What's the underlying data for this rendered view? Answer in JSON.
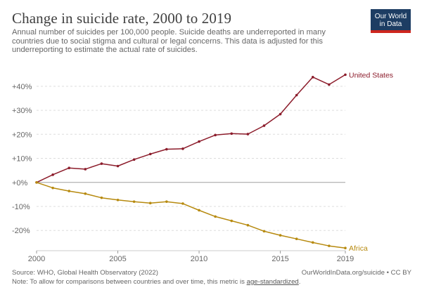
{
  "header": {
    "title": "Change in suicide rate, 2000 to 2019",
    "subtitle": "Annual number of suicides per 100,000 people. Suicide deaths are underreported in many countries due to social stigma and cultural or legal concerns. This data is adjusted for this underreporting to estimate the actual rate of suicides.",
    "logo_line1": "Our World",
    "logo_line2": "in Data"
  },
  "footer": {
    "source": "Source: WHO, Global Health Observatory (2022)",
    "note_prefix": "Note: To allow for comparisons between countries and over time, this metric is ",
    "note_link": "age-standardized",
    "note_suffix": ".",
    "url": "OurWorldInData.org/suicide",
    "license": " • CC BY"
  },
  "colors": {
    "united_states": "#8c1c2b",
    "africa": "#b78a0f",
    "grid": "#dddddd",
    "zero_line": "#a0a0a0",
    "logo_bg": "#1d3d63",
    "logo_bar": "#ce261e"
  },
  "chart_data": {
    "type": "line",
    "x": [
      2000,
      2001,
      2002,
      2003,
      2004,
      2005,
      2006,
      2007,
      2008,
      2009,
      2010,
      2011,
      2012,
      2013,
      2014,
      2015,
      2016,
      2017,
      2018,
      2019
    ],
    "series": [
      {
        "name": "United States",
        "color": "#8c1c2b",
        "values": [
          0,
          3.2,
          6.0,
          5.5,
          7.8,
          6.8,
          9.5,
          11.8,
          13.8,
          14.0,
          17.0,
          19.7,
          20.3,
          20.1,
          23.6,
          28.4,
          36.3,
          43.8,
          40.7,
          44.8
        ]
      },
      {
        "name": "Africa",
        "color": "#b78a0f",
        "values": [
          0,
          -2.3,
          -3.6,
          -4.7,
          -6.4,
          -7.3,
          -8.0,
          -8.6,
          -8.0,
          -8.8,
          -11.6,
          -14.2,
          -16.0,
          -17.8,
          -20.3,
          -22.0,
          -23.5,
          -25.0,
          -26.4,
          -27.3
        ]
      }
    ],
    "x_ticks": [
      2000,
      2005,
      2010,
      2015,
      2019
    ],
    "x_tick_labels": [
      "2000",
      "2005",
      "2010",
      "2015",
      "2019"
    ],
    "y_ticks": [
      -20,
      -10,
      0,
      10,
      20,
      30,
      40
    ],
    "y_tick_labels": [
      "-20%",
      "-10%",
      "+0%",
      "+10%",
      "+20%",
      "+30%",
      "+40%"
    ],
    "xlim": [
      2000,
      2019
    ],
    "ylim": [
      -28.4,
      45.5
    ],
    "grid": "horizontal dashed",
    "legend": "inline labels at line ends"
  }
}
